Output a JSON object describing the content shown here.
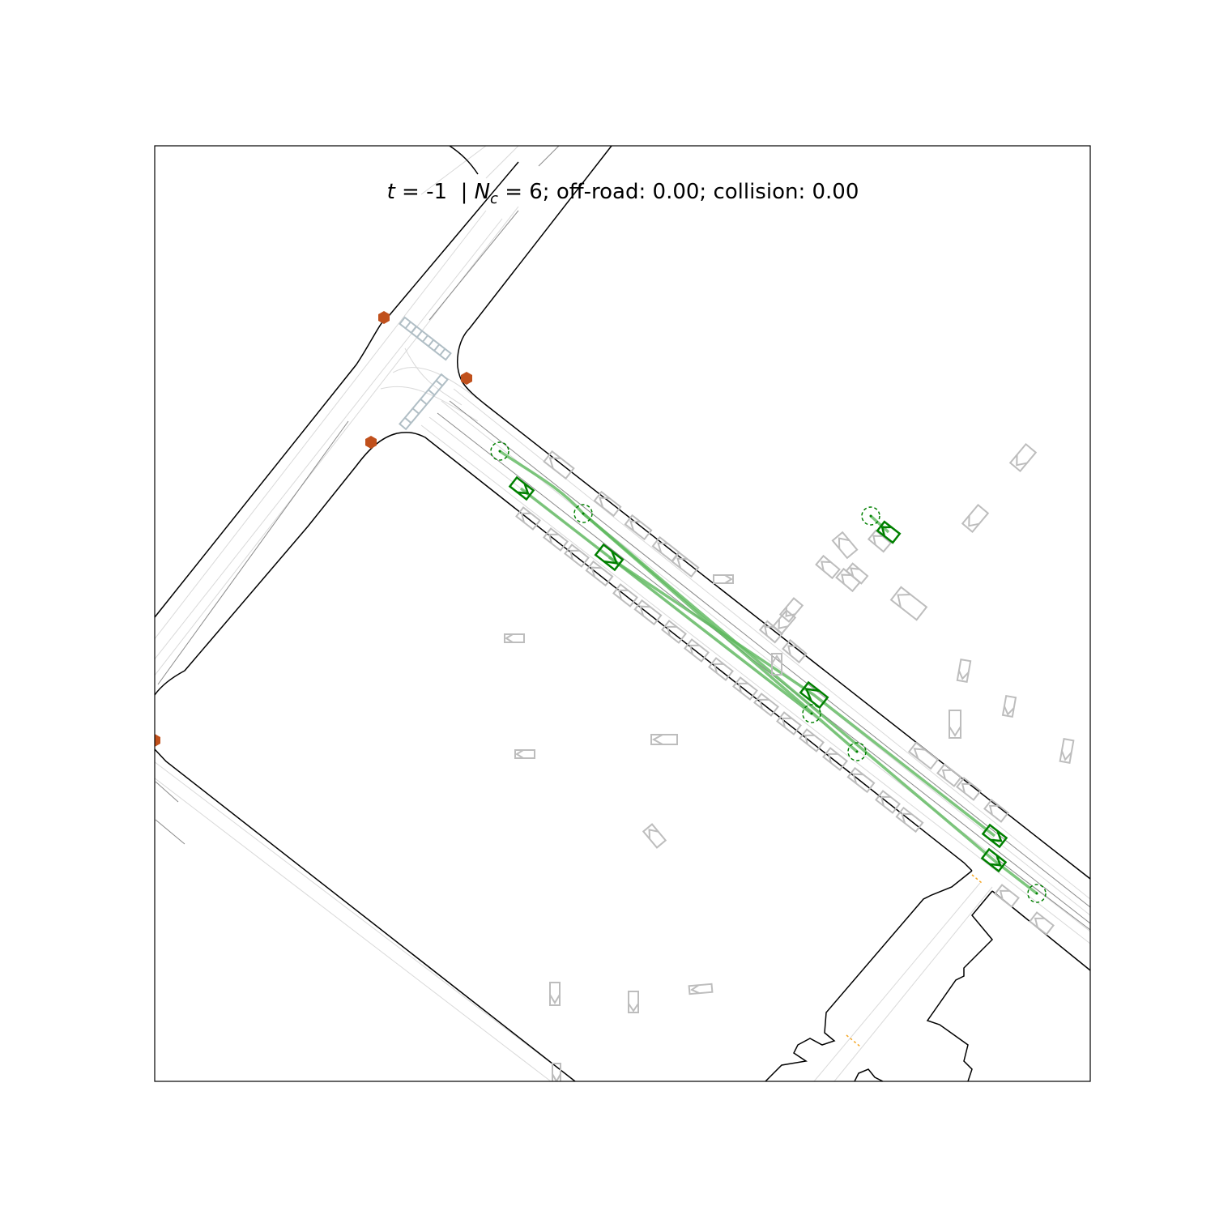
{
  "title": {
    "t_symbol": "t",
    "t_rest": " = -1  | ",
    "n_symbol": "N",
    "n_subscript": "c",
    "n_rest": " = 6; off-road: 0.00; collision: 0.00"
  },
  "colors": {
    "road_edge": "#000000",
    "lane_line": "#d3d3d3",
    "lane_line_dark": "#808080",
    "crosswalk": "#b0bec5",
    "stop_sign": "#c0501c",
    "parked_vehicle": "#bdbdbd",
    "controlled_vehicle": "#008000",
    "trajectory": "#5cb85c",
    "goal_marker": "#008000",
    "lane_marker_orange": "#f5a623"
  },
  "legend": {
    "controlled_agents": 6,
    "off_road_rate": "0.00",
    "collision_rate": "0.00"
  },
  "icons": {
    "stop_sign": "stop-sign-icon",
    "vehicle": "vehicle-box-icon",
    "goal": "goal-circle-icon"
  }
}
